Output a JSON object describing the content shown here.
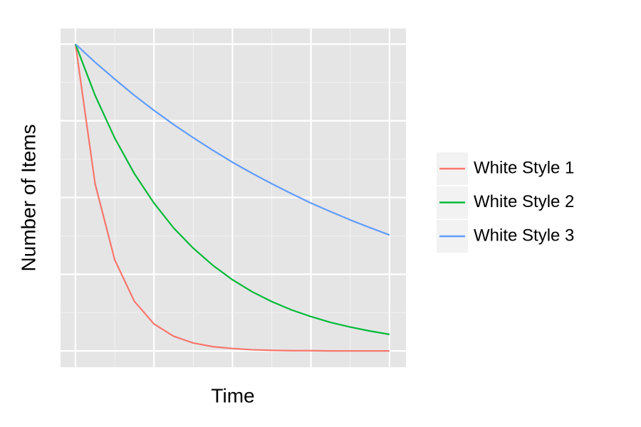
{
  "chart_data": {
    "type": "line",
    "x_label": "Time",
    "y_label": "Number of Items",
    "x": [
      0,
      0.25,
      0.5,
      0.75,
      1,
      1.25,
      1.5,
      1.75,
      2,
      2.25,
      2.5,
      2.75,
      3,
      3.25,
      3.5,
      3.75,
      4
    ],
    "series": [
      {
        "name": "White Style 1",
        "color": "#f8766d",
        "values": [
          1,
          0.545,
          0.297,
          0.162,
          0.088,
          0.048,
          0.026,
          0.014,
          0.008,
          0.004,
          0.002,
          0.001,
          0.001,
          0,
          0,
          0,
          0
        ]
      },
      {
        "name": "White Style 2",
        "color": "#00ba38",
        "values": [
          1,
          0.833,
          0.694,
          0.578,
          0.482,
          0.401,
          0.335,
          0.279,
          0.232,
          0.193,
          0.161,
          0.134,
          0.112,
          0.093,
          0.078,
          0.065,
          0.054
        ]
      },
      {
        "name": "White Style 3",
        "color": "#619cff",
        "values": [
          1,
          0.941,
          0.886,
          0.833,
          0.784,
          0.738,
          0.695,
          0.654,
          0.615,
          0.579,
          0.545,
          0.513,
          0.482,
          0.454,
          0.427,
          0.402,
          0.378
        ]
      }
    ],
    "xlim": [
      -0.19,
      4.21
    ],
    "ylim": [
      -0.053,
      1.051
    ],
    "xticks": [
      0,
      1,
      2,
      3,
      4
    ],
    "yticks": [
      0,
      0.25,
      0.5,
      0.75,
      1
    ],
    "grid": true,
    "legend": "right"
  }
}
